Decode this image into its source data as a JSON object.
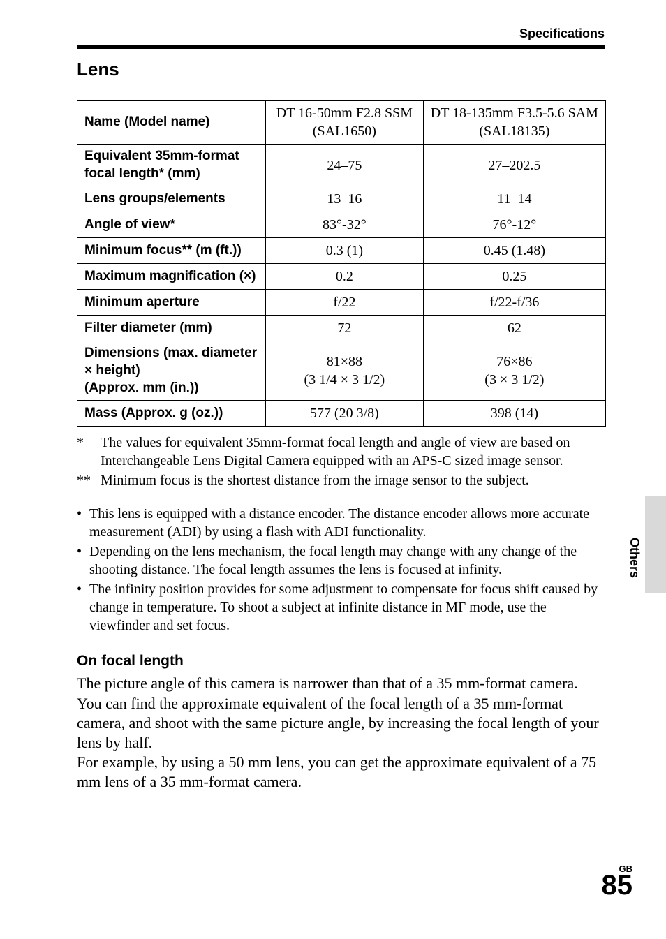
{
  "header": {
    "breadcrumb": "Specifications"
  },
  "section": {
    "title": "Lens"
  },
  "table": {
    "rows": [
      {
        "label": "Name (Model name)",
        "col1": "DT 16-50mm F2.8 SSM (SAL1650)",
        "col2": "DT 18-135mm F3.5-5.6 SAM (SAL18135)"
      },
      {
        "label": "Equivalent 35mm-format focal length* (mm)",
        "col1": "24–75",
        "col2": "27–202.5"
      },
      {
        "label": "Lens groups/elements",
        "col1": "13–16",
        "col2": "11–14"
      },
      {
        "label": "Angle of view*",
        "col1": "83°-32°",
        "col2": "76°-12°"
      },
      {
        "label": "Minimum focus** (m (ft.))",
        "col1": "0.3 (1)",
        "col2": "0.45 (1.48)"
      },
      {
        "label": "Maximum magnification (×)",
        "col1": "0.2",
        "col2": "0.25"
      },
      {
        "label": "Minimum aperture",
        "col1": "f/22",
        "col2": "f/22-f/36"
      },
      {
        "label": "Filter diameter (mm)",
        "col1": "72",
        "col2": "62"
      },
      {
        "label": "Dimensions (max. diameter × height)\n(Approx. mm (in.))",
        "col1": "81×88\n(3 1/4 × 3 1/2)",
        "col2": "76×86\n(3 × 3 1/2)"
      },
      {
        "label": "Mass (Approx. g (oz.))",
        "col1": "577 (20 3/8)",
        "col2": "398 (14)"
      }
    ]
  },
  "footnotes": [
    {
      "mark": "*",
      "text": "The values for equivalent 35mm-format focal length and angle of view are based on Interchangeable Lens Digital Camera equipped with an APS-C sized image sensor."
    },
    {
      "mark": "**",
      "text": "Minimum focus is the shortest distance from the image sensor to the subject."
    }
  ],
  "bullets": [
    "This lens is equipped with a distance encoder. The distance encoder allows more accurate measurement (ADI) by using a flash with ADI functionality.",
    "Depending on the lens mechanism, the focal length may change with any change of the shooting distance. The focal length assumes the lens is focused at infinity.",
    "The infinity position provides for some adjustment to compensate for focus shift caused by change in temperature. To shoot a subject at infinite distance in MF mode, use the viewfinder and set focus."
  ],
  "subsection": {
    "heading": "On focal length",
    "body": "The picture angle of this camera is narrower than that of a 35 mm-format camera. You can find the approximate equivalent of the focal length of a 35 mm-format camera, and shoot with the same picture angle, by increasing the focal length of your lens by half.\nFor example, by using a 50 mm lens, you can get the approximate equivalent of a 75 mm lens of a 35 mm-format camera."
  },
  "sidetab": {
    "label": "Others"
  },
  "footer": {
    "region": "GB",
    "page": "85"
  },
  "colors": {
    "text": "#000000",
    "background": "#ffffff",
    "tab": "#d9d9d9"
  }
}
